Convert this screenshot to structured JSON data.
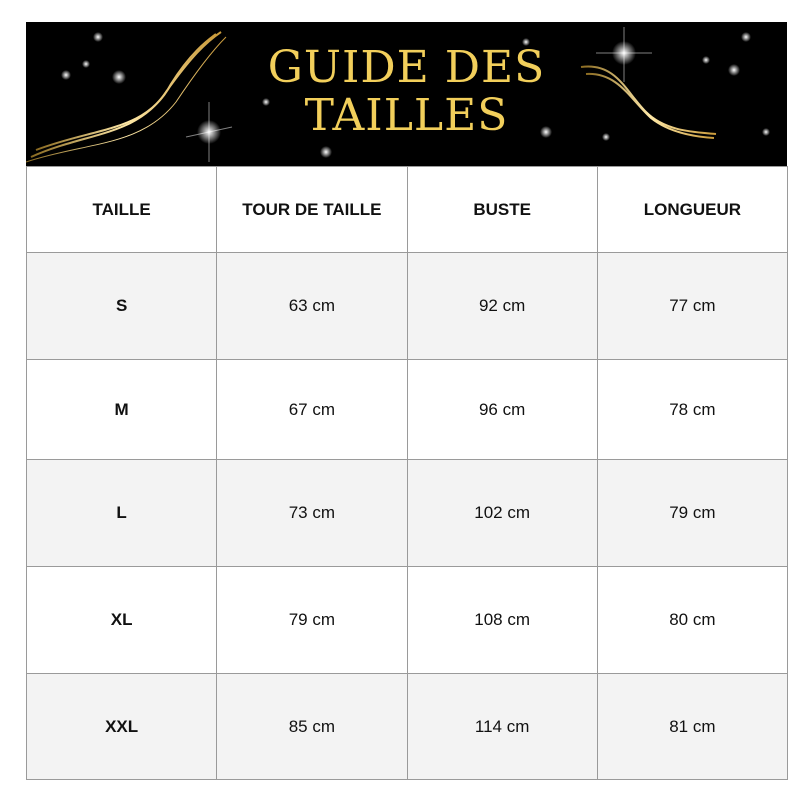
{
  "banner": {
    "title_line1": "GUIDE DES",
    "title_line2": "TAILLES",
    "title_color": "#f2cf5b",
    "background": "#000000"
  },
  "table": {
    "headers": [
      "TAILLE",
      "TOUR DE TAILLE",
      "BUSTE",
      "LONGUEUR"
    ],
    "rows": [
      [
        "S",
        "63 cm",
        "92 cm",
        "77 cm"
      ],
      [
        "M",
        "67 cm",
        "96 cm",
        "78 cm"
      ],
      [
        "L",
        "73 cm",
        "102 cm",
        "79 cm"
      ],
      [
        "XL",
        "79 cm",
        "108 cm",
        "80 cm"
      ],
      [
        "XXL",
        "85 cm",
        "114 cm",
        "81 cm"
      ]
    ]
  }
}
